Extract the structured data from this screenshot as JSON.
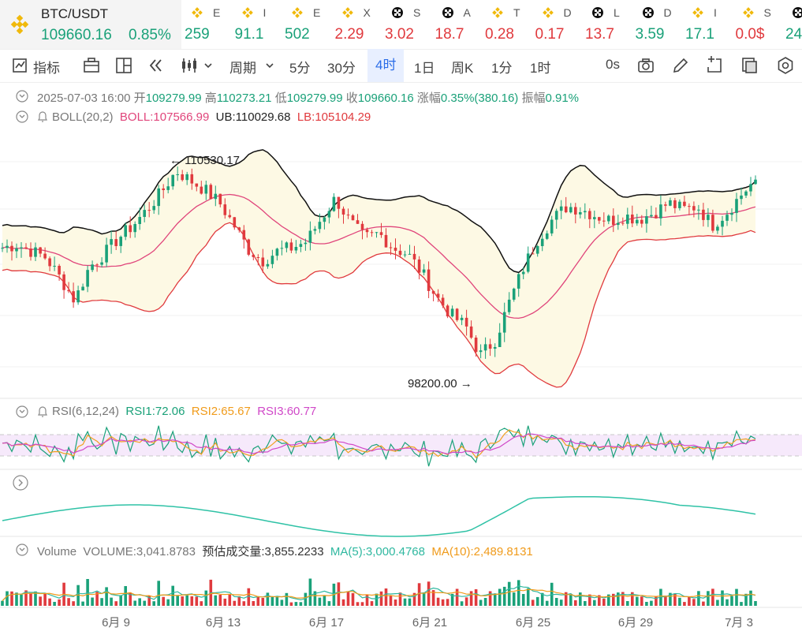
{
  "ticker": {
    "symbol": "BTC/USDT",
    "price": "109660.16",
    "change": "0.85%",
    "others": [
      {
        "val": "259",
        "dir": "up",
        "nm": "E",
        "icon": "bnb"
      },
      {
        "val": "91.1",
        "dir": "up",
        "nm": "I",
        "icon": "bnb"
      },
      {
        "val": "502",
        "dir": "up",
        "nm": "E",
        "icon": "bnb"
      },
      {
        "val": "2.29",
        "dir": "down",
        "nm": "X",
        "icon": "bnb"
      },
      {
        "val": "3.02",
        "dir": "down",
        "nm": "S",
        "icon": "okx"
      },
      {
        "val": "18.7",
        "dir": "down",
        "nm": "A",
        "icon": "okx"
      },
      {
        "val": "0.28",
        "dir": "down",
        "nm": "T",
        "icon": "bnb"
      },
      {
        "val": "0.17",
        "dir": "down",
        "nm": "D",
        "icon": "bnb"
      },
      {
        "val": "13.7",
        "dir": "down",
        "nm": "L",
        "icon": "okx"
      },
      {
        "val": "3.59",
        "dir": "up",
        "nm": "D",
        "icon": "okx"
      },
      {
        "val": "17.1",
        "dir": "up",
        "nm": "I",
        "icon": "bnb"
      },
      {
        "val": "0.0$",
        "dir": "down",
        "nm": "S",
        "icon": "bnb"
      },
      {
        "val": "24",
        "dir": "up",
        "nm": "",
        "icon": "okx"
      }
    ]
  },
  "toolbar": {
    "indicator": "指标",
    "period": "周期",
    "intervals": [
      "5分",
      "30分",
      "4时",
      "1日",
      "周K",
      "1分",
      "1时"
    ],
    "active_interval": "4时",
    "countdown": "0s"
  },
  "ohlc": {
    "date": "2025-07-03 16:00",
    "open_label": "开",
    "open": "109279.99",
    "high_label": "高",
    "high": "110273.21",
    "low_label": "低",
    "low": "109279.99",
    "close_label": "收",
    "close": "109660.16",
    "change_label": "涨幅",
    "change": "0.35%(380.16)",
    "amp_label": "振幅",
    "amp": "0.91%"
  },
  "boll": {
    "label": "BOLL(20,2)",
    "boll": "BOLL:107566.99",
    "ub": "UB:110029.68",
    "lb": "LB:105104.29"
  },
  "rsi": {
    "label": "RSI(6,12,24)",
    "rsi1": "RSI1:72.06",
    "rsi2": "RSI2:65.67",
    "rsi3": "RSI3:60.77"
  },
  "volume": {
    "label": "Volume",
    "vol": "VOLUME:3,041.8783",
    "est": "预估成交量:3,855.2233",
    "ma5": "MA(5):3,000.4768",
    "ma10": "MA(10):2,489.8131"
  },
  "colors": {
    "up": "#1aa179",
    "down": "#e03a3e",
    "mid": "#e0457b",
    "band": "#111111",
    "rsi2": "#f0a020",
    "rsi3": "#d048c8",
    "ma10": "#f09b1b",
    "ma5": "#2fb8a0"
  },
  "chart_data": {
    "type": "candlestick",
    "x_ticks": [
      "6月 9",
      "6月 13",
      "6月 17",
      "6月 21",
      "6月 25",
      "6月 29",
      "7月 3"
    ],
    "high_annotation": "110530.17",
    "low_annotation": "98200.00",
    "close_series_approx": [
      105400,
      105600,
      105200,
      104800,
      103500,
      102100,
      104200,
      105000,
      106000,
      106800,
      107800,
      108900,
      110200,
      109600,
      109000,
      108200,
      106800,
      105300,
      104600,
      105200,
      105400,
      105800,
      107200,
      108500,
      107000,
      106000,
      106300,
      105400,
      105000,
      103800,
      102300,
      101200,
      100500,
      98700,
      99600,
      102000,
      104200,
      106000,
      107200,
      108000,
      107800,
      107400,
      107100,
      107400,
      107200,
      107600,
      108200,
      107800,
      108000,
      106800,
      107600,
      108700,
      109660
    ],
    "volume_max": 9000
  }
}
